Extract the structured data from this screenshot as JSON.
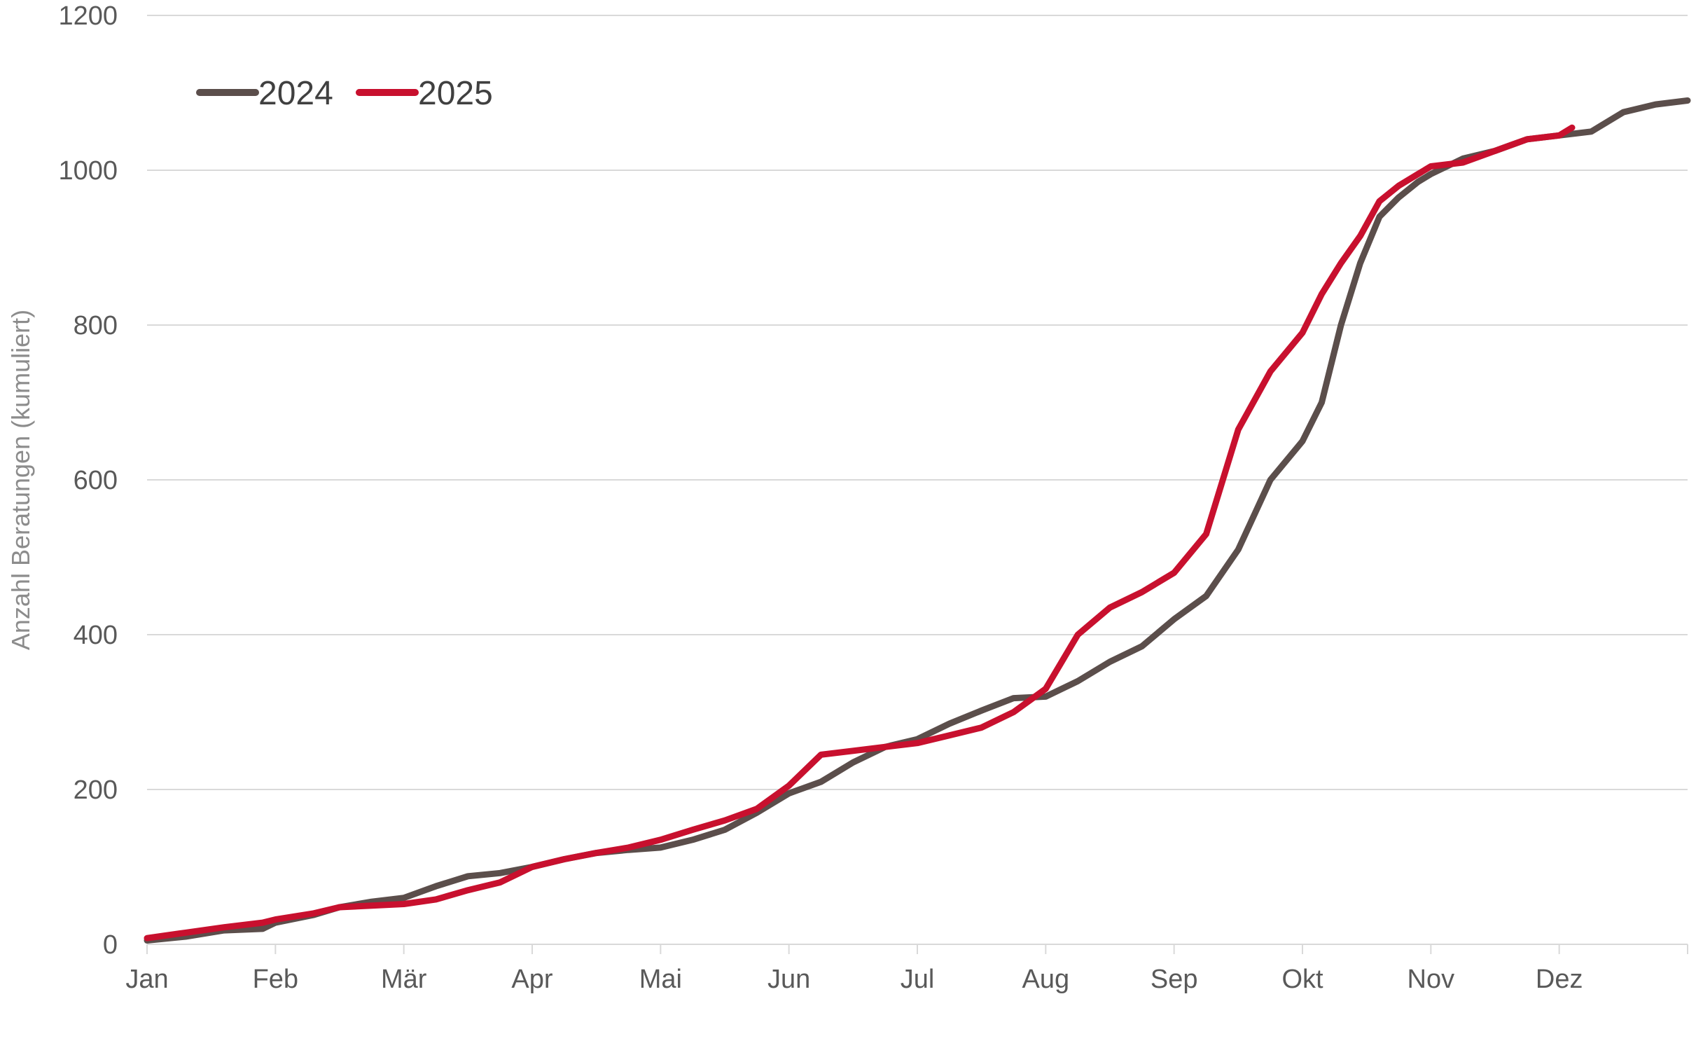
{
  "chart_data": {
    "type": "line",
    "ylabel": "Anzahl Beratungen (kumuliert)",
    "ylim": [
      0,
      1200
    ],
    "yticks": [
      0,
      200,
      400,
      600,
      800,
      1000,
      1200
    ],
    "xlim": [
      0,
      12
    ],
    "months": [
      "Jan",
      "Feb",
      "Mär",
      "Apr",
      "Mai",
      "Jun",
      "Jul",
      "Aug",
      "Sep",
      "Okt",
      "Nov",
      "Dez"
    ],
    "grid": true,
    "legend_position": "top-left",
    "series": [
      {
        "name": "2024",
        "color": "#5b4e4b",
        "x": [
          0,
          0.3,
          0.6,
          0.9,
          1.0,
          1.3,
          1.5,
          1.75,
          2.0,
          2.25,
          2.5,
          2.75,
          3.0,
          3.25,
          3.5,
          3.75,
          4.0,
          4.25,
          4.5,
          4.75,
          5.0,
          5.25,
          5.5,
          5.75,
          6.0,
          6.25,
          6.5,
          6.75,
          7.0,
          7.25,
          7.5,
          7.75,
          8.0,
          8.25,
          8.5,
          8.75,
          9.0,
          9.15,
          9.3,
          9.45,
          9.6,
          9.75,
          9.9,
          10.0,
          10.25,
          10.5,
          10.75,
          11.0,
          11.25,
          11.5,
          11.75,
          12.0
        ],
        "y": [
          5,
          10,
          18,
          20,
          28,
          38,
          48,
          55,
          60,
          75,
          88,
          92,
          100,
          110,
          118,
          122,
          125,
          135,
          148,
          170,
          195,
          210,
          235,
          255,
          265,
          285,
          302,
          318,
          320,
          340,
          365,
          385,
          420,
          450,
          510,
          600,
          650,
          700,
          800,
          880,
          940,
          965,
          985,
          995,
          1015,
          1025,
          1040,
          1045,
          1050,
          1075,
          1085,
          1090
        ]
      },
      {
        "name": "2025",
        "color": "#c8102e",
        "x": [
          0,
          0.3,
          0.6,
          0.9,
          1.0,
          1.3,
          1.5,
          1.75,
          2.0,
          2.25,
          2.5,
          2.75,
          3.0,
          3.25,
          3.5,
          3.75,
          4.0,
          4.25,
          4.5,
          4.75,
          5.0,
          5.25,
          5.5,
          5.75,
          6.0,
          6.25,
          6.5,
          6.75,
          7.0,
          7.25,
          7.5,
          7.75,
          8.0,
          8.25,
          8.5,
          8.75,
          9.0,
          9.15,
          9.3,
          9.45,
          9.6,
          9.75,
          9.9,
          10.0,
          10.25,
          10.5,
          10.75,
          11.0,
          11.1
        ],
        "y": [
          8,
          15,
          22,
          28,
          32,
          40,
          48,
          50,
          52,
          58,
          70,
          80,
          100,
          110,
          118,
          125,
          135,
          148,
          160,
          175,
          205,
          245,
          250,
          255,
          260,
          270,
          280,
          300,
          330,
          400,
          435,
          455,
          480,
          530,
          665,
          740,
          790,
          840,
          880,
          915,
          960,
          980,
          995,
          1005,
          1010,
          1025,
          1040,
          1045,
          1055
        ]
      }
    ]
  }
}
